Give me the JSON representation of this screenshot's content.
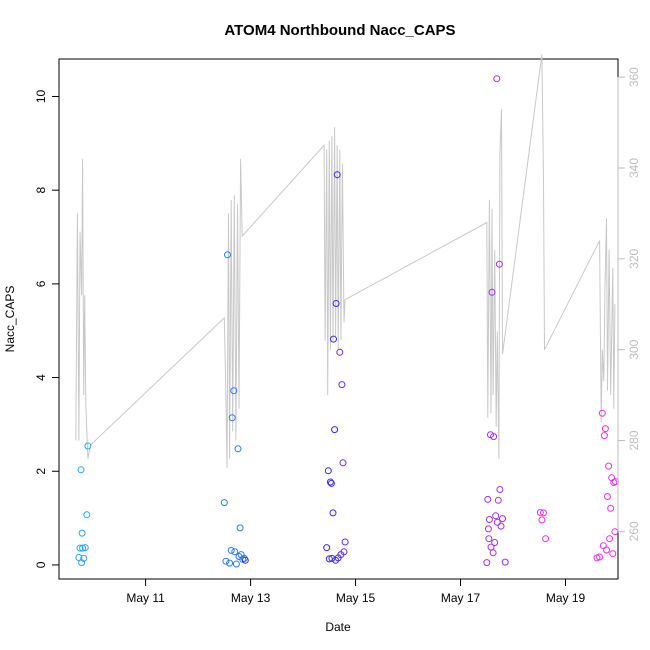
{
  "chart_data": {
    "type": "scatter",
    "title": "ATOM4 Northbound Nacc_CAPS",
    "xlabel": "Date",
    "ylabel": "Nacc_CAPS",
    "x_ticks": [
      "May 11",
      "May 13",
      "May 15",
      "May 17",
      "May 19"
    ],
    "y_ticks": [
      0,
      2,
      4,
      6,
      8,
      10
    ],
    "y2_ticks": [
      260,
      280,
      300,
      320,
      340,
      360
    ],
    "xlim": [
      9.35,
      20.0
    ],
    "ylim": [
      -0.3,
      10.8
    ],
    "y2lim": [
      249.5,
      364
    ],
    "grid": false,
    "point_colors": [
      "#27a7f0",
      "#2c7bf0",
      "#3b2be8",
      "#6a2fe0",
      "#a330e0",
      "#e033e4"
    ],
    "line_color": "#c8c8c8",
    "series": [
      {
        "values": [
          [
            9.73,
            0.16
          ],
          [
            9.75,
            0.36
          ],
          [
            9.77,
            2.03
          ],
          [
            9.78,
            0.05
          ],
          [
            9.79,
            0.68
          ],
          [
            9.8,
            0.36
          ],
          [
            9.82,
            0.14
          ],
          [
            9.85,
            0.37
          ],
          [
            9.88,
            1.07
          ],
          [
            9.9,
            2.54
          ],
          [
            12.5,
            1.33
          ],
          [
            12.53,
            0.08
          ],
          [
            12.56,
            6.62
          ],
          [
            12.6,
            0.04
          ],
          [
            12.63,
            0.31
          ],
          [
            12.65,
            3.14
          ],
          [
            12.68,
            3.72
          ],
          [
            12.7,
            0.28
          ],
          [
            12.73,
            0.02
          ],
          [
            12.76,
            2.48
          ],
          [
            12.78,
            0.18
          ],
          [
            12.8,
            0.79
          ],
          [
            12.82,
            0.22
          ],
          [
            12.85,
            0.12
          ],
          [
            12.88,
            0.14
          ],
          [
            12.9,
            0.1
          ],
          [
            14.45,
            0.37
          ],
          [
            14.48,
            2.01
          ],
          [
            14.5,
            0.13
          ],
          [
            14.52,
            1.77
          ],
          [
            14.54,
            1.74
          ],
          [
            14.55,
            0.14
          ],
          [
            14.57,
            1.11
          ],
          [
            14.58,
            4.82
          ],
          [
            14.6,
            2.89
          ],
          [
            14.62,
            0.1
          ],
          [
            14.63,
            5.58
          ],
          [
            14.65,
            8.33
          ],
          [
            14.67,
            0.15
          ],
          [
            14.7,
            4.54
          ],
          [
            14.72,
            0.22
          ],
          [
            14.74,
            3.85
          ],
          [
            14.76,
            2.18
          ],
          [
            14.78,
            0.28
          ],
          [
            14.8,
            0.49
          ]
        ]
      },
      {
        "values": [
          [
            17.5,
            0.05
          ],
          [
            17.52,
            1.4
          ],
          [
            17.53,
            0.77
          ],
          [
            17.54,
            0.56
          ],
          [
            17.55,
            0.97
          ],
          [
            17.57,
            2.78
          ],
          [
            17.58,
            0.38
          ],
          [
            17.6,
            5.82
          ],
          [
            17.62,
            0.26
          ],
          [
            17.63,
            2.74
          ],
          [
            17.65,
            0.48
          ],
          [
            17.67,
            1.05
          ],
          [
            17.69,
            10.38
          ],
          [
            17.7,
            0.91
          ],
          [
            17.72,
            1.38
          ],
          [
            17.74,
            6.42
          ],
          [
            17.75,
            1.61
          ],
          [
            17.77,
            0.83
          ],
          [
            17.8,
            0.99
          ],
          [
            17.85,
            0.06
          ],
          [
            18.52,
            1.12
          ],
          [
            18.55,
            0.96
          ],
          [
            18.58,
            1.11
          ],
          [
            18.62,
            0.56
          ],
          [
            19.6,
            0.15
          ],
          [
            19.65,
            0.17
          ],
          [
            19.7,
            3.24
          ],
          [
            19.72,
            0.41
          ],
          [
            19.74,
            2.76
          ],
          [
            19.76,
            2.91
          ],
          [
            19.78,
            0.32
          ],
          [
            19.8,
            1.46
          ],
          [
            19.82,
            2.11
          ],
          [
            19.84,
            0.56
          ],
          [
            19.86,
            1.21
          ],
          [
            19.88,
            1.86
          ],
          [
            19.9,
            0.24
          ],
          [
            19.92,
            1.76
          ],
          [
            19.94,
            0.71
          ],
          [
            19.95,
            1.78
          ]
        ]
      }
    ],
    "line_series_y2": {
      "values": [
        [
          9.67,
          280
        ],
        [
          9.7,
          330
        ],
        [
          9.73,
          280
        ],
        [
          9.75,
          326
        ],
        [
          9.78,
          312
        ],
        [
          9.8,
          342
        ],
        [
          9.82,
          290
        ],
        [
          9.84,
          312
        ],
        [
          9.86,
          288
        ],
        [
          9.9,
          276
        ],
        [
          9.95,
          279
        ],
        [
          12.5,
          307
        ],
        [
          12.53,
          290
        ],
        [
          12.55,
          274
        ],
        [
          12.58,
          330
        ],
        [
          12.6,
          276
        ],
        [
          12.63,
          333
        ],
        [
          12.66,
          282
        ],
        [
          12.69,
          334
        ],
        [
          12.72,
          280
        ],
        [
          12.75,
          332
        ],
        [
          12.78,
          287
        ],
        [
          12.81,
          342
        ],
        [
          12.84,
          325
        ],
        [
          14.4,
          345
        ],
        [
          14.42,
          302
        ],
        [
          14.45,
          344
        ],
        [
          14.47,
          290
        ],
        [
          14.5,
          346
        ],
        [
          14.52,
          300
        ],
        [
          14.55,
          347
        ],
        [
          14.57,
          302
        ],
        [
          14.6,
          349
        ],
        [
          14.62,
          303
        ],
        [
          14.65,
          345
        ],
        [
          14.67,
          300
        ],
        [
          14.7,
          344
        ],
        [
          14.72,
          302
        ],
        [
          14.75,
          341
        ],
        [
          14.78,
          306
        ],
        [
          14.8,
          311
        ],
        [
          17.5,
          328
        ],
        [
          17.52,
          285
        ],
        [
          17.55,
          333
        ],
        [
          17.58,
          286
        ],
        [
          17.6,
          331
        ],
        [
          17.62,
          290
        ],
        [
          17.65,
          322
        ],
        [
          17.68,
          283
        ],
        [
          17.7,
          304
        ],
        [
          17.73,
          276
        ],
        [
          17.75,
          343
        ],
        [
          17.78,
          353
        ],
        [
          17.8,
          299
        ],
        [
          18.55,
          365
        ],
        [
          18.58,
          337
        ],
        [
          18.6,
          300
        ],
        [
          19.65,
          324
        ],
        [
          19.68,
          284
        ],
        [
          19.7,
          300
        ],
        [
          19.73,
          293
        ],
        [
          19.75,
          313
        ],
        [
          19.78,
          329
        ],
        [
          19.8,
          291
        ],
        [
          19.83,
          322
        ],
        [
          19.86,
          290
        ],
        [
          19.9,
          318
        ],
        [
          19.92,
          287
        ],
        [
          19.94,
          310
        ]
      ]
    }
  }
}
